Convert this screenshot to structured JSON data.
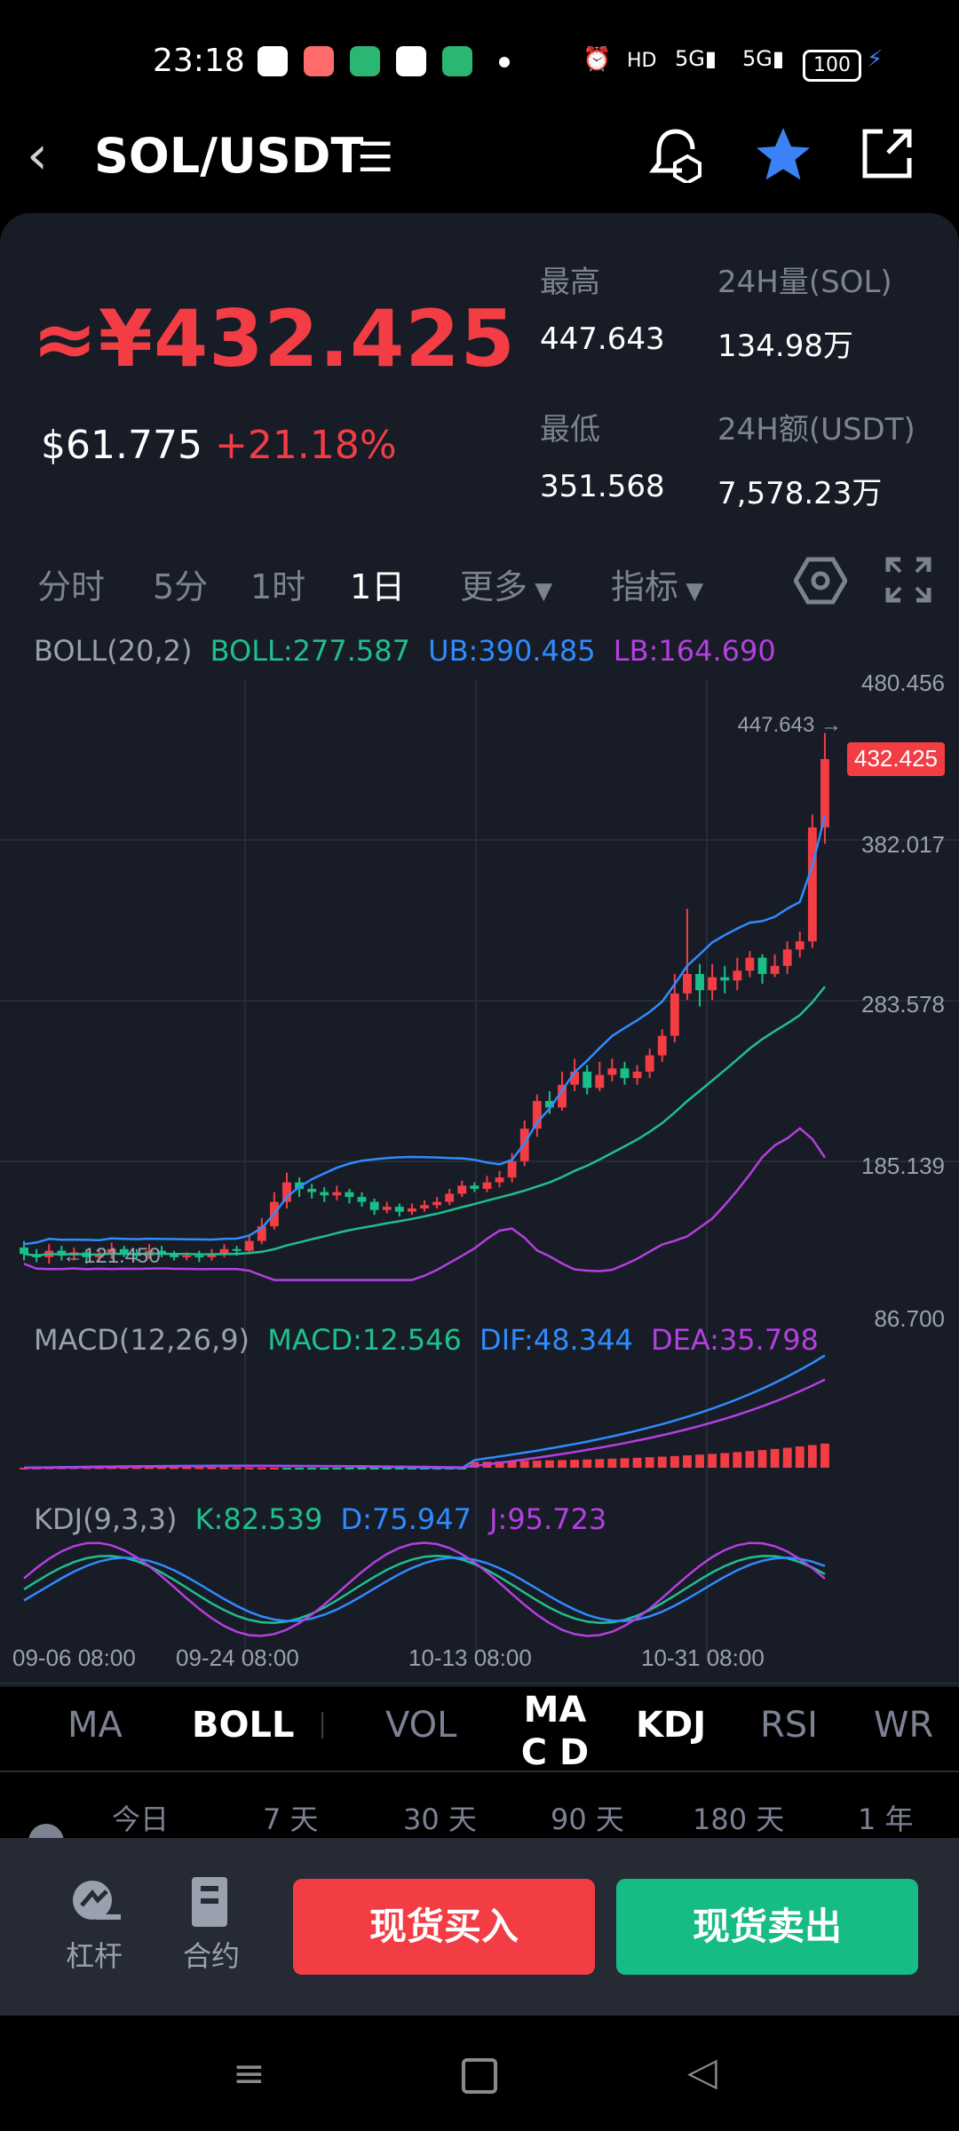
{
  "status_bar": {
    "time": "23:18",
    "battery": "100"
  },
  "header": {
    "pair": "SOL/USDT",
    "back_icon": "chevron-left-icon",
    "menu_icon": "list-icon",
    "alert_icon": "price-alert-icon",
    "star_icon": "star-icon",
    "share_icon": "share-icon"
  },
  "ticker": {
    "price": "≈¥432.425",
    "usd": "$61.775",
    "change": "+21.18%",
    "high_label": "最高",
    "high": "447.643",
    "low_label": "最低",
    "low": "351.568",
    "vol_label": "24H量(SOL)",
    "vol": "134.98万",
    "amt_label": "24H额(USDT)",
    "amt": "7,578.23万"
  },
  "timeframes": [
    "分时",
    "5分",
    "1时",
    "1日",
    "更多",
    "指标"
  ],
  "indicators": {
    "boll": {
      "name": "BOLL(20,2)",
      "boll": "BOLL:277.587",
      "ub": "UB:390.485",
      "lb": "LB:164.690"
    },
    "macd": {
      "name": "MACD(12,26,9)",
      "macd": "MACD:12.546",
      "dif": "DIF:48.344",
      "dea": "DEA:35.798"
    },
    "kdj": {
      "name": "KDJ(9,3,3)",
      "k": "K:82.539",
      "d": "D:75.947",
      "j": "J:95.723"
    }
  },
  "chart_data": {
    "type": "candlestick",
    "y_ticks": [
      "480.456",
      "382.017",
      "283.578",
      "185.139",
      "86.700"
    ],
    "x_ticks": [
      "09-06 08:00",
      "09-24 08:00",
      "10-13 08:00",
      "10-31 08:00"
    ],
    "last_price_tag": "432.425",
    "max_marker": "447.643 →",
    "min_marker": "←121.450",
    "colors": {
      "up": "#f23d45",
      "down": "#18bf88",
      "mid": "#1fbf8f",
      "ub": "#2e8cff",
      "lb": "#b53fe0"
    }
  },
  "indicator_tabs": [
    "MA",
    "BOLL",
    "VOL",
    "MAC D",
    "KDJ",
    "RSI",
    "WR"
  ],
  "range_tabs": [
    "今日",
    "7 天",
    "30 天",
    "90 天",
    "180 天",
    "1 年"
  ],
  "footer": {
    "leverage": "杠杆",
    "contract": "合约",
    "buy": "现货买入",
    "sell": "现货卖出"
  }
}
